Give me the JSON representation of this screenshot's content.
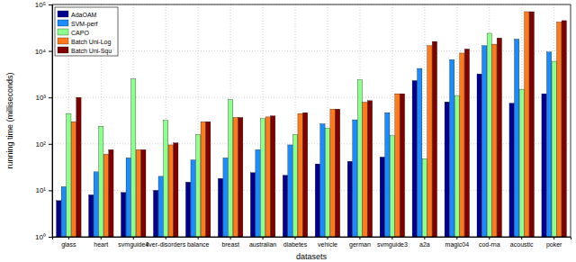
{
  "chart_data": {
    "type": "bar",
    "x_label": "datasets",
    "y_label": "running time (milliseconds)",
    "categories": [
      "glass",
      "heart",
      "svmguide4",
      "liver-disorders",
      "balance",
      "breast",
      "australian",
      "diabetes",
      "vehicle",
      "german",
      "svmguide3",
      "a2a",
      "magic04",
      "cod-rna",
      "acoustic",
      "poker"
    ],
    "series": [
      {
        "name": "AdaOAM",
        "color": "#00008f",
        "values": [
          6,
          8,
          9,
          10,
          15,
          18,
          24,
          21,
          37,
          42,
          52,
          2300,
          800,
          3200,
          750,
          1200
        ]
      },
      {
        "name": "SVM-perf",
        "color": "#1a8cff",
        "values": [
          12,
          25,
          50,
          20,
          45,
          50,
          75,
          95,
          270,
          330,
          470,
          4200,
          6500,
          13000,
          18000,
          9500
        ]
      },
      {
        "name": "CAPO",
        "color": "#8cff8c",
        "values": [
          450,
          240,
          2500,
          320,
          160,
          900,
          350,
          160,
          220,
          2400,
          150,
          48,
          1100,
          24000,
          1500,
          6000
        ]
      },
      {
        "name": "Batch Uni-Log",
        "color": "#ff7a1a",
        "values": [
          300,
          60,
          75,
          95,
          300,
          370,
          380,
          450,
          560,
          790,
          1200,
          13000,
          9000,
          14000,
          70000,
          42000
        ]
      },
      {
        "name": "Batch Uni-Squ",
        "color": "#800000",
        "values": [
          1000,
          75,
          75,
          105,
          300,
          370,
          400,
          470,
          560,
          850,
          1200,
          16000,
          11000,
          19000,
          70000,
          45000
        ]
      }
    ],
    "ylim": [
      1,
      100000
    ],
    "yticks": [
      {
        "value": 1,
        "label": "10⁰"
      },
      {
        "value": 10,
        "label": "10¹"
      },
      {
        "value": 100,
        "label": "10²"
      },
      {
        "value": 1000,
        "label": "10³"
      },
      {
        "value": 10000,
        "label": "10⁴"
      },
      {
        "value": 100000,
        "label": "10⁵"
      }
    ],
    "log": "y",
    "grid": true,
    "legend": "upper left"
  }
}
